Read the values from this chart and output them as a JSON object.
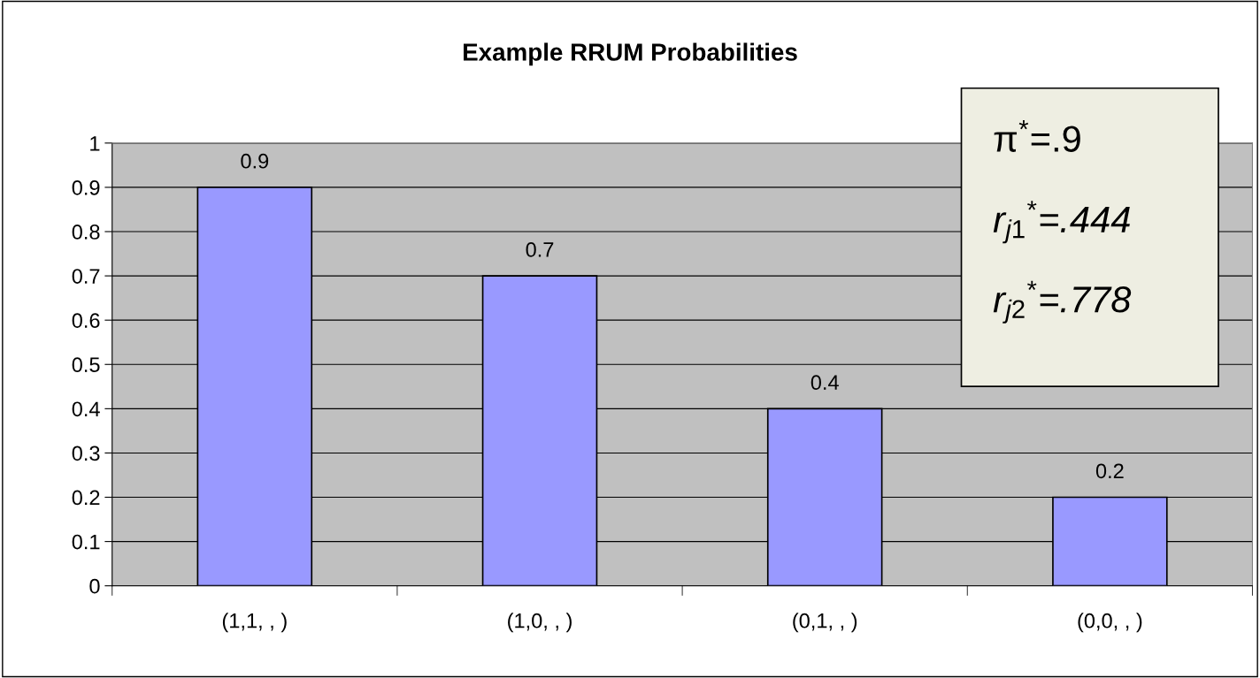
{
  "chart_data": {
    "type": "bar",
    "title": "Example RRUM Probabilities",
    "categories": [
      "(1,1, , )",
      "(1,0, , )",
      "(0,1, , )",
      "(0,0, , )"
    ],
    "values": [
      0.9,
      0.7,
      0.4,
      0.2
    ],
    "color": "#9999ff",
    "data_labels": true,
    "ylim": [
      0,
      1
    ],
    "yticks": [
      0,
      0.1,
      0.2,
      0.3,
      0.4,
      0.5,
      0.6,
      0.7,
      0.8,
      0.9,
      1
    ],
    "grid": "y",
    "legend": false,
    "annotations": [
      "π$^{*}$=.9",
      "r$_{j1}$$^{*}$=.444",
      "r$_{j2}$$^{*}$=.778"
    ]
  }
}
